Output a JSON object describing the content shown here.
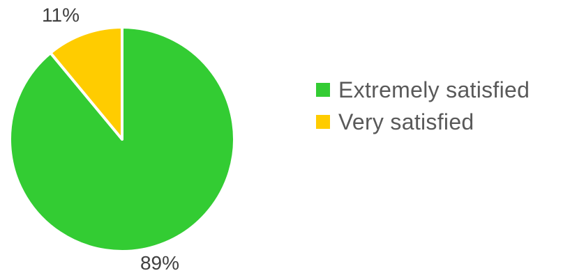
{
  "chart_data": {
    "type": "pie",
    "title": "",
    "slices": [
      {
        "label": "Extremely satisfied",
        "value": 89,
        "display": "89%",
        "color": "#33cc33"
      },
      {
        "label": "Very satisfied",
        "value": 11,
        "display": "11%",
        "color": "#ffcc00"
      }
    ],
    "start_angle_deg": 0,
    "direction": "clockwise",
    "legend_position": "right"
  }
}
